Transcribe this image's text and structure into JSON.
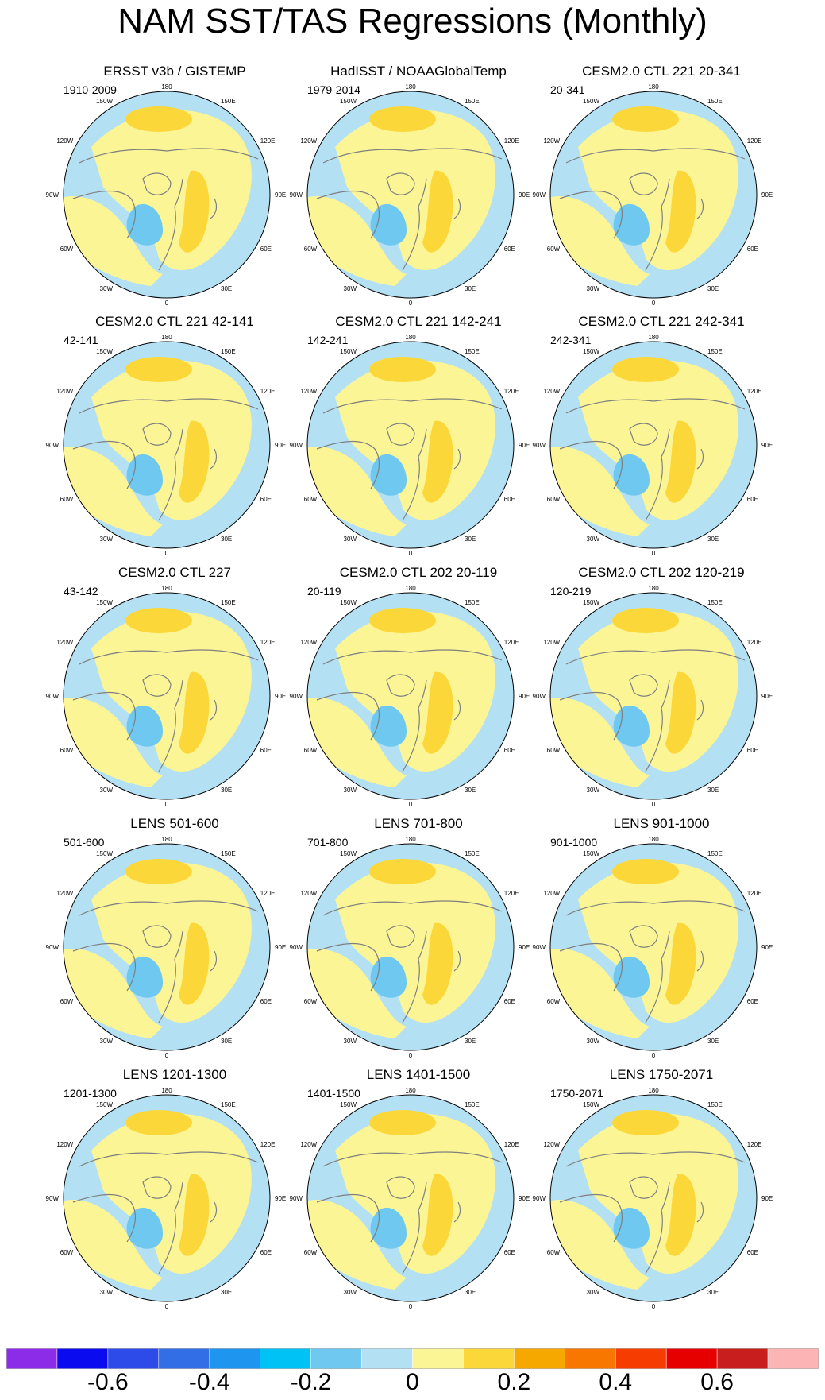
{
  "figure": {
    "title": "NAM SST/TAS Regressions (Monthly)"
  },
  "lon_labels": {
    "top": "180",
    "bottom": "0",
    "left_upper": "120W",
    "left_top": "150W",
    "left_mid": "90W",
    "left_lower": "60W",
    "left_bottom": "30W",
    "right_top": "150E",
    "right_upper": "120E",
    "right_mid": "90E",
    "right_lower": "60E",
    "right_bottom": "30E"
  },
  "panels": [
    {
      "title": "ERSST v3b / GISTEMP",
      "period": "1910-2009"
    },
    {
      "title": "HadISST / NOAAGlobalTemp",
      "period": "1979-2014"
    },
    {
      "title": "CESM2.0 CTL 221 20-341",
      "period": "20-341"
    },
    {
      "title": "CESM2.0 CTL 221 42-141",
      "period": "42-141"
    },
    {
      "title": "CESM2.0 CTL 221 142-241",
      "period": "142-241"
    },
    {
      "title": "CESM2.0 CTL 221 242-341",
      "period": "242-341"
    },
    {
      "title": "CESM2.0 CTL 227",
      "period": "43-142"
    },
    {
      "title": "CESM2.0 CTL 202 20-119",
      "period": "20-119"
    },
    {
      "title": "CESM2.0 CTL 202 120-219",
      "period": "120-219"
    },
    {
      "title": "LENS 501-600",
      "period": "501-600"
    },
    {
      "title": "LENS 701-800",
      "period": "701-800"
    },
    {
      "title": "LENS 901-1000",
      "period": "901-1000"
    },
    {
      "title": "LENS 1201-1300",
      "period": "1201-1300"
    },
    {
      "title": "LENS 1401-1500",
      "period": "1401-1500"
    },
    {
      "title": "LENS 1750-2071",
      "period": "1750-2071"
    }
  ],
  "colors": {
    "land_outline": "#7f7f7f",
    "map_border": "#000000",
    "strong_negative": "#6ec8f0",
    "weak_negative": "#b4e0f4",
    "weak_positive": "#fcf596",
    "moderate_positive": "#fcd739",
    "strong_positive": "#f7a800"
  },
  "colorbar": {
    "colors": [
      "#8c2ce8",
      "#0b0bf0",
      "#2c4be8",
      "#326ee6",
      "#1e96f0",
      "#00c2f5",
      "#6ec8f0",
      "#b4e0f4",
      "#fcf596",
      "#fcd739",
      "#f7a800",
      "#f77700",
      "#f73c00",
      "#e60000",
      "#c81e1e",
      "#fcb4b4"
    ],
    "labels": [
      "-0.6",
      "-0.4",
      "-0.2",
      "0",
      "0.2",
      "0.4",
      "0.6"
    ]
  }
}
